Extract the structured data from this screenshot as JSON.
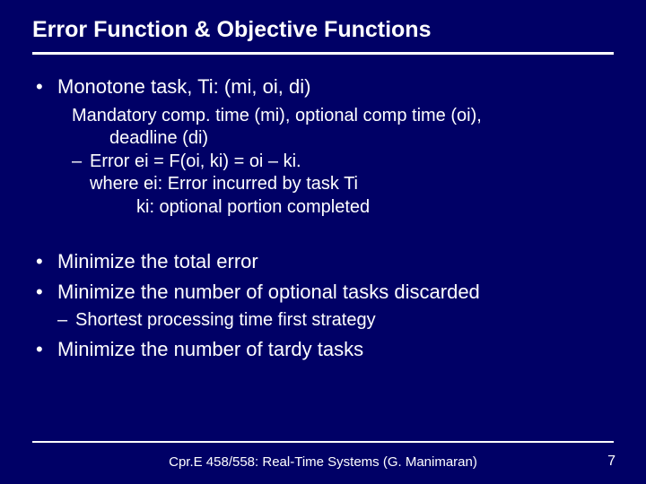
{
  "colors": {
    "background": "#000066",
    "text": "#ffffff",
    "rule": "#ffffff"
  },
  "typography": {
    "family": "Arial",
    "title_size_pt": 25,
    "body_size_pt": 22,
    "sub_size_pt": 20,
    "footer_size_pt": 15
  },
  "title": "Error Function & Objective Functions",
  "bullets": {
    "b1": "Monotone task, Ti: (mi, oi, di)",
    "b1_sub": {
      "l1": "Mandatory comp. time (mi), optional comp time (oi),",
      "l1b": "deadline (di)",
      "l2": "Error ei = F(oi, ki) = oi – ki.",
      "l3": "where ei: Error incurred by task Ti",
      "l4": "ki: optional portion completed"
    },
    "b2": "Minimize the total error",
    "b3": "Minimize the number of optional tasks discarded",
    "b3_sub": "Shortest processing time first strategy",
    "b4": "Minimize the number of tardy tasks"
  },
  "footer": "Cpr.E 458/558: Real-Time Systems (G. Manimaran)",
  "page_number": "7"
}
